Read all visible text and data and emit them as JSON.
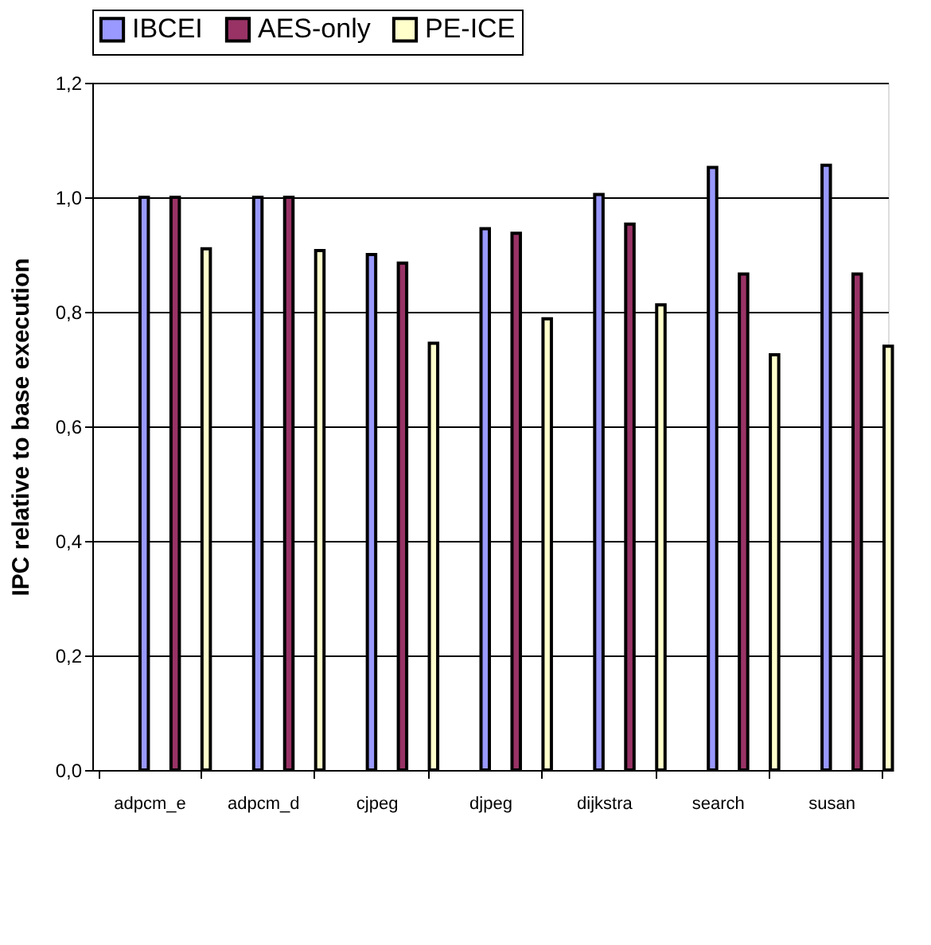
{
  "chart_data": {
    "type": "bar",
    "ylabel": "IPC relative to base execution",
    "categories": [
      "adpcm_e",
      "adpcm_d",
      "cjpeg",
      "djpeg",
      "dijkstra",
      "search",
      "susan"
    ],
    "series": [
      {
        "name": "IBCEI",
        "color": "#9999ff",
        "values": [
          1.0,
          1.0,
          0.9,
          0.945,
          1.005,
          1.052,
          1.056
        ]
      },
      {
        "name": "AES-only",
        "color": "#993366",
        "values": [
          1.0,
          1.0,
          0.885,
          0.937,
          0.953,
          0.866,
          0.866
        ]
      },
      {
        "name": "PE-ICE",
        "color": "#ffffcc",
        "values": [
          0.91,
          0.907,
          0.745,
          0.788,
          0.812,
          0.725,
          0.74
        ]
      }
    ],
    "ylim": [
      0,
      1.2
    ],
    "yticks": [
      {
        "value": 0,
        "label": "0,0"
      },
      {
        "value": 0.2,
        "label": "0,2"
      },
      {
        "value": 0.4,
        "label": "0,4"
      },
      {
        "value": 0.6,
        "label": "0,6"
      },
      {
        "value": 0.8,
        "label": "0,8"
      },
      {
        "value": 1.0,
        "label": "1,0"
      },
      {
        "value": 1.2,
        "label": "1,2"
      }
    ],
    "grid": "y",
    "legend": "top"
  }
}
